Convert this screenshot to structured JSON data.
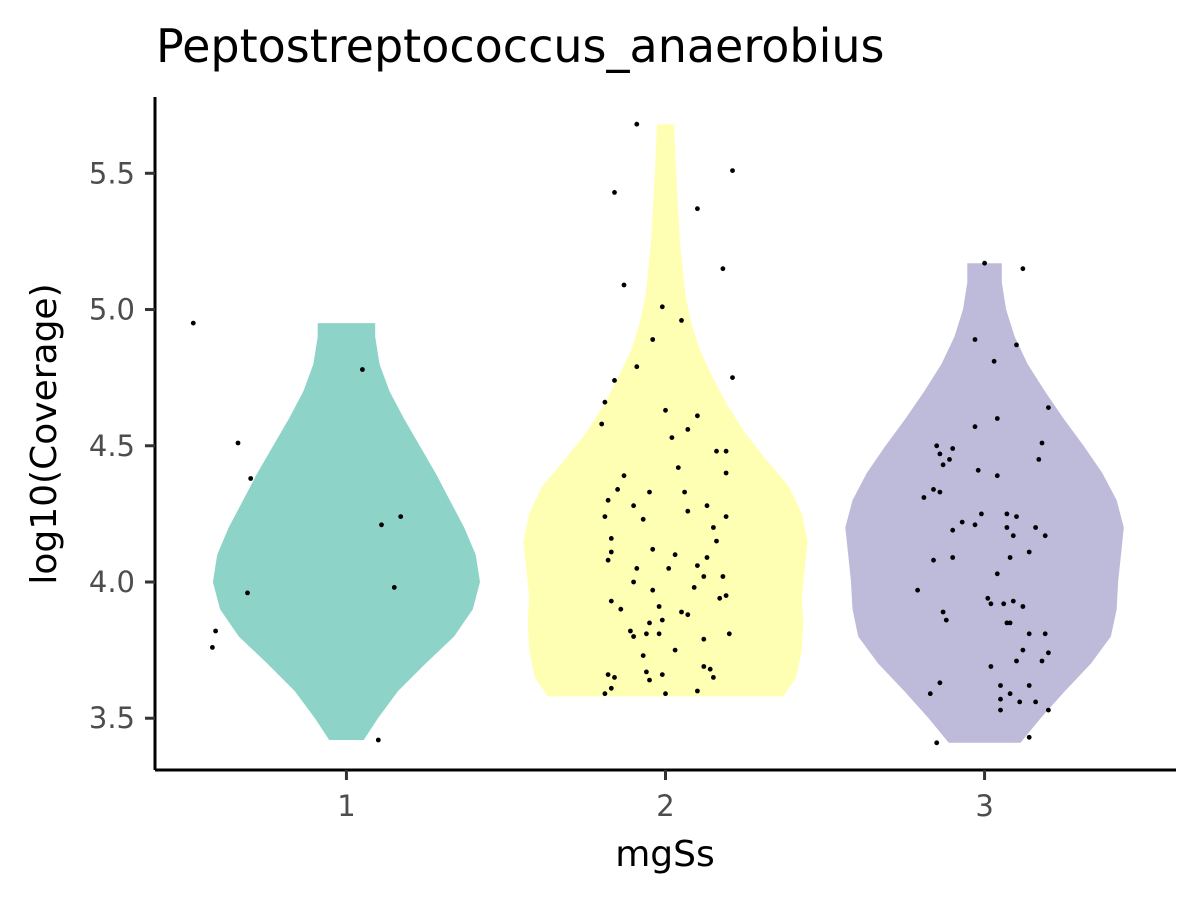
{
  "chart_data": {
    "type": "violin",
    "title": "Peptostreptococcus_anaerobius",
    "xlabel": "mgSs",
    "ylabel": "log10(Coverage)",
    "categories": [
      "1",
      "2",
      "3"
    ],
    "ylim": [
      3.31,
      5.78
    ],
    "yticks": [
      "3.5",
      "4.0",
      "4.5",
      "5.0",
      "5.5"
    ],
    "grid": false,
    "legend": "none",
    "groups": [
      {
        "category": "1",
        "color": "#8dd3c7",
        "range": [
          3.42,
          4.95
        ],
        "density": [
          [
            3.42,
            0.12
          ],
          [
            3.5,
            0.22
          ],
          [
            3.6,
            0.36
          ],
          [
            3.7,
            0.55
          ],
          [
            3.8,
            0.75
          ],
          [
            3.9,
            0.88
          ],
          [
            4.0,
            0.93
          ],
          [
            4.1,
            0.9
          ],
          [
            4.2,
            0.82
          ],
          [
            4.3,
            0.72
          ],
          [
            4.4,
            0.62
          ],
          [
            4.5,
            0.51
          ],
          [
            4.6,
            0.4
          ],
          [
            4.7,
            0.3
          ],
          [
            4.8,
            0.23
          ],
          [
            4.9,
            0.2
          ],
          [
            4.95,
            0.2
          ]
        ],
        "points": [
          [
            -0.48,
            4.95
          ],
          [
            0.05,
            4.78
          ],
          [
            -0.34,
            4.51
          ],
          [
            -0.3,
            4.38
          ],
          [
            0.17,
            4.24
          ],
          [
            0.11,
            4.21
          ],
          [
            0.15,
            3.98
          ],
          [
            -0.31,
            3.96
          ],
          [
            -0.41,
            3.82
          ],
          [
            -0.42,
            3.76
          ],
          [
            0.1,
            3.42
          ]
        ]
      },
      {
        "category": "2",
        "color": "#ffffb3",
        "range": [
          3.58,
          5.68
        ],
        "density": [
          [
            3.58,
            0.82
          ],
          [
            3.65,
            0.91
          ],
          [
            3.75,
            0.95
          ],
          [
            3.85,
            0.96
          ],
          [
            3.95,
            0.95
          ],
          [
            4.05,
            0.97
          ],
          [
            4.15,
            0.99
          ],
          [
            4.25,
            0.95
          ],
          [
            4.35,
            0.86
          ],
          [
            4.45,
            0.7
          ],
          [
            4.55,
            0.55
          ],
          [
            4.65,
            0.43
          ],
          [
            4.75,
            0.33
          ],
          [
            4.85,
            0.24
          ],
          [
            4.95,
            0.18
          ],
          [
            5.05,
            0.14
          ],
          [
            5.15,
            0.12
          ],
          [
            5.25,
            0.1
          ],
          [
            5.35,
            0.09
          ],
          [
            5.45,
            0.08
          ],
          [
            5.55,
            0.07
          ],
          [
            5.68,
            0.06
          ]
        ],
        "points": [
          [
            -0.09,
            5.68
          ],
          [
            0.21,
            5.51
          ],
          [
            -0.16,
            5.43
          ],
          [
            0.1,
            5.37
          ],
          [
            0.18,
            5.15
          ],
          [
            -0.13,
            5.09
          ],
          [
            -0.01,
            5.01
          ],
          [
            0.05,
            4.96
          ],
          [
            -0.04,
            4.89
          ],
          [
            0.21,
            4.75
          ],
          [
            -0.09,
            4.79
          ],
          [
            -0.16,
            4.74
          ],
          [
            -0.19,
            4.66
          ],
          [
            0.1,
            4.61
          ],
          [
            -0.2,
            4.58
          ],
          [
            0.0,
            4.63
          ],
          [
            0.07,
            4.56
          ],
          [
            0.02,
            4.53
          ],
          [
            0.16,
            4.48
          ],
          [
            0.19,
            4.48
          ],
          [
            0.04,
            4.42
          ],
          [
            -0.13,
            4.39
          ],
          [
            0.19,
            4.4
          ],
          [
            -0.15,
            4.34
          ],
          [
            -0.05,
            4.33
          ],
          [
            0.06,
            4.33
          ],
          [
            -0.18,
            4.3
          ],
          [
            -0.1,
            4.28
          ],
          [
            0.13,
            4.28
          ],
          [
            -0.19,
            4.24
          ],
          [
            -0.07,
            4.23
          ],
          [
            0.07,
            4.26
          ],
          [
            0.19,
            4.24
          ],
          [
            0.15,
            4.2
          ],
          [
            -0.17,
            4.16
          ],
          [
            0.16,
            4.15
          ],
          [
            -0.04,
            4.12
          ],
          [
            -0.17,
            4.11
          ],
          [
            0.03,
            4.1
          ],
          [
            0.13,
            4.09
          ],
          [
            -0.18,
            4.08
          ],
          [
            0.01,
            4.05
          ],
          [
            0.1,
            4.06
          ],
          [
            -0.09,
            4.05
          ],
          [
            0.18,
            4.02
          ],
          [
            0.12,
            4.02
          ],
          [
            -0.1,
            4.0
          ],
          [
            0.09,
            3.98
          ],
          [
            -0.04,
            3.97
          ],
          [
            0.17,
            3.94
          ],
          [
            0.19,
            3.95
          ],
          [
            -0.17,
            3.93
          ],
          [
            -0.02,
            3.91
          ],
          [
            -0.14,
            3.9
          ],
          [
            0.05,
            3.89
          ],
          [
            0.07,
            3.88
          ],
          [
            -0.01,
            3.86
          ],
          [
            -0.05,
            3.85
          ],
          [
            -0.11,
            3.82
          ],
          [
            -0.02,
            3.81
          ],
          [
            -0.06,
            3.81
          ],
          [
            -0.1,
            3.8
          ],
          [
            0.12,
            3.79
          ],
          [
            0.2,
            3.81
          ],
          [
            0.03,
            3.75
          ],
          [
            -0.07,
            3.73
          ],
          [
            -0.18,
            3.66
          ],
          [
            -0.16,
            3.65
          ],
          [
            -0.01,
            3.66
          ],
          [
            -0.06,
            3.67
          ],
          [
            0.12,
            3.69
          ],
          [
            0.14,
            3.68
          ],
          [
            -0.05,
            3.64
          ],
          [
            0.15,
            3.65
          ],
          [
            -0.17,
            3.61
          ],
          [
            0.0,
            3.59
          ],
          [
            0.1,
            3.6
          ],
          [
            -0.19,
            3.59
          ]
        ]
      },
      {
        "category": "3",
        "color": "#bebada",
        "range": [
          3.41,
          5.17
        ],
        "density": [
          [
            3.41,
            0.25
          ],
          [
            3.5,
            0.39
          ],
          [
            3.6,
            0.56
          ],
          [
            3.7,
            0.74
          ],
          [
            3.8,
            0.88
          ],
          [
            3.9,
            0.92
          ],
          [
            4.0,
            0.93
          ],
          [
            4.1,
            0.95
          ],
          [
            4.2,
            0.97
          ],
          [
            4.3,
            0.92
          ],
          [
            4.4,
            0.82
          ],
          [
            4.5,
            0.69
          ],
          [
            4.6,
            0.55
          ],
          [
            4.7,
            0.42
          ],
          [
            4.8,
            0.3
          ],
          [
            4.9,
            0.21
          ],
          [
            5.0,
            0.15
          ],
          [
            5.1,
            0.12
          ],
          [
            5.17,
            0.12
          ]
        ],
        "points": [
          [
            0.0,
            5.17
          ],
          [
            0.12,
            5.15
          ],
          [
            -0.03,
            4.89
          ],
          [
            0.1,
            4.87
          ],
          [
            0.03,
            4.81
          ],
          [
            0.2,
            4.64
          ],
          [
            0.04,
            4.6
          ],
          [
            -0.03,
            4.57
          ],
          [
            0.18,
            4.51
          ],
          [
            -0.15,
            4.5
          ],
          [
            -0.1,
            4.49
          ],
          [
            -0.14,
            4.47
          ],
          [
            -0.11,
            4.45
          ],
          [
            0.17,
            4.45
          ],
          [
            -0.13,
            4.43
          ],
          [
            -0.02,
            4.41
          ],
          [
            0.04,
            4.39
          ],
          [
            -0.16,
            4.34
          ],
          [
            -0.14,
            4.33
          ],
          [
            -0.01,
            4.25
          ],
          [
            0.1,
            4.24
          ],
          [
            -0.19,
            4.31
          ],
          [
            0.07,
            4.25
          ],
          [
            -0.07,
            4.22
          ],
          [
            -0.03,
            4.21
          ],
          [
            0.07,
            4.2
          ],
          [
            0.16,
            4.2
          ],
          [
            -0.1,
            4.19
          ],
          [
            0.09,
            4.17
          ],
          [
            0.19,
            4.17
          ],
          [
            0.14,
            4.11
          ],
          [
            -0.16,
            4.08
          ],
          [
            -0.1,
            4.09
          ],
          [
            0.08,
            4.09
          ],
          [
            0.04,
            4.03
          ],
          [
            -0.21,
            3.97
          ],
          [
            0.01,
            3.94
          ],
          [
            0.06,
            3.92
          ],
          [
            0.02,
            3.92
          ],
          [
            0.09,
            3.93
          ],
          [
            0.12,
            3.91
          ],
          [
            -0.13,
            3.89
          ],
          [
            -0.12,
            3.86
          ],
          [
            0.07,
            3.85
          ],
          [
            0.08,
            3.85
          ],
          [
            0.14,
            3.81
          ],
          [
            0.19,
            3.81
          ],
          [
            0.2,
            3.74
          ],
          [
            0.12,
            3.75
          ],
          [
            0.1,
            3.71
          ],
          [
            0.18,
            3.71
          ],
          [
            0.02,
            3.69
          ],
          [
            -0.14,
            3.63
          ],
          [
            0.05,
            3.62
          ],
          [
            0.14,
            3.62
          ],
          [
            0.08,
            3.59
          ],
          [
            -0.17,
            3.59
          ],
          [
            0.05,
            3.57
          ],
          [
            0.16,
            3.56
          ],
          [
            0.11,
            3.56
          ],
          [
            0.05,
            3.53
          ],
          [
            0.2,
            3.53
          ],
          [
            0.14,
            3.43
          ],
          [
            -0.15,
            3.41
          ]
        ]
      }
    ]
  }
}
